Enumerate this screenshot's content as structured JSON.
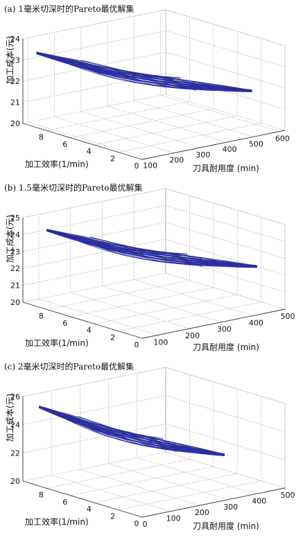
{
  "chart_data": [
    {
      "type": "line",
      "title": "(a) 1毫米切深时的Pareto最优解集",
      "xlabel": "加工效率(1/min)",
      "ylabel": "刀具耐用度 (min)",
      "zlabel": "加工成本(元)",
      "x_ticks": [
        "0",
        "2",
        "4",
        "6",
        "8"
      ],
      "y_ticks": [
        "100",
        "200",
        "300",
        "400",
        "500",
        "600"
      ],
      "z_ticks": [
        "20",
        "21",
        "22",
        "23",
        "24"
      ],
      "xlim": [
        0,
        10
      ],
      "ylim": [
        80,
        620
      ],
      "zlim": [
        20,
        24
      ],
      "grid": true,
      "series_color": "#2b2f9e",
      "front_start": {
        "efficiency": 9.3,
        "tool_life": 100,
        "cost": 23.4
      },
      "front_end": {
        "efficiency": 1.0,
        "tool_life": 540,
        "cost": 21.9
      }
    },
    {
      "type": "line",
      "title": "(b) 1.5毫米切深时的Pareto最优解集",
      "xlabel": "加工效率(1/min)",
      "ylabel": "刀具耐用度 (min)",
      "zlabel": "加工成本(元)",
      "x_ticks": [
        "0",
        "2",
        "4",
        "6",
        "8"
      ],
      "y_ticks": [
        "100",
        "200",
        "300",
        "400",
        "500"
      ],
      "z_ticks": [
        "20",
        "21",
        "22",
        "23",
        "24",
        "25"
      ],
      "xlim": [
        0,
        10
      ],
      "ylim": [
        50,
        500
      ],
      "zlim": [
        20,
        25
      ],
      "grid": true,
      "series_color": "#2b2f9e",
      "front_start": {
        "efficiency": 8.8,
        "tool_life": 80,
        "cost": 24.4
      },
      "front_end": {
        "efficiency": 1.0,
        "tool_life": 450,
        "cost": 22.5
      }
    },
    {
      "type": "line",
      "title": "(c) 2毫米切深时的Pareto最优解集",
      "xlabel": "加工效率(1/min)",
      "ylabel": "刀具耐用度 (min)",
      "zlabel": "加工成本(元)",
      "x_ticks": [
        "0",
        "2",
        "4",
        "6",
        "8"
      ],
      "y_ticks": [
        "0",
        "100",
        "200",
        "300",
        "400",
        "500"
      ],
      "z_ticks": [
        "20",
        "22",
        "24",
        "26"
      ],
      "xlim": [
        0,
        10
      ],
      "ylim": [
        0,
        500
      ],
      "zlim": [
        20,
        26
      ],
      "grid": true,
      "series_color": "#2b2f9e",
      "front_start": {
        "efficiency": 9.6,
        "tool_life": 40,
        "cost": 25.2
      },
      "front_end": {
        "efficiency": 1.0,
        "tool_life": 330,
        "cost": 22.8
      }
    }
  ]
}
